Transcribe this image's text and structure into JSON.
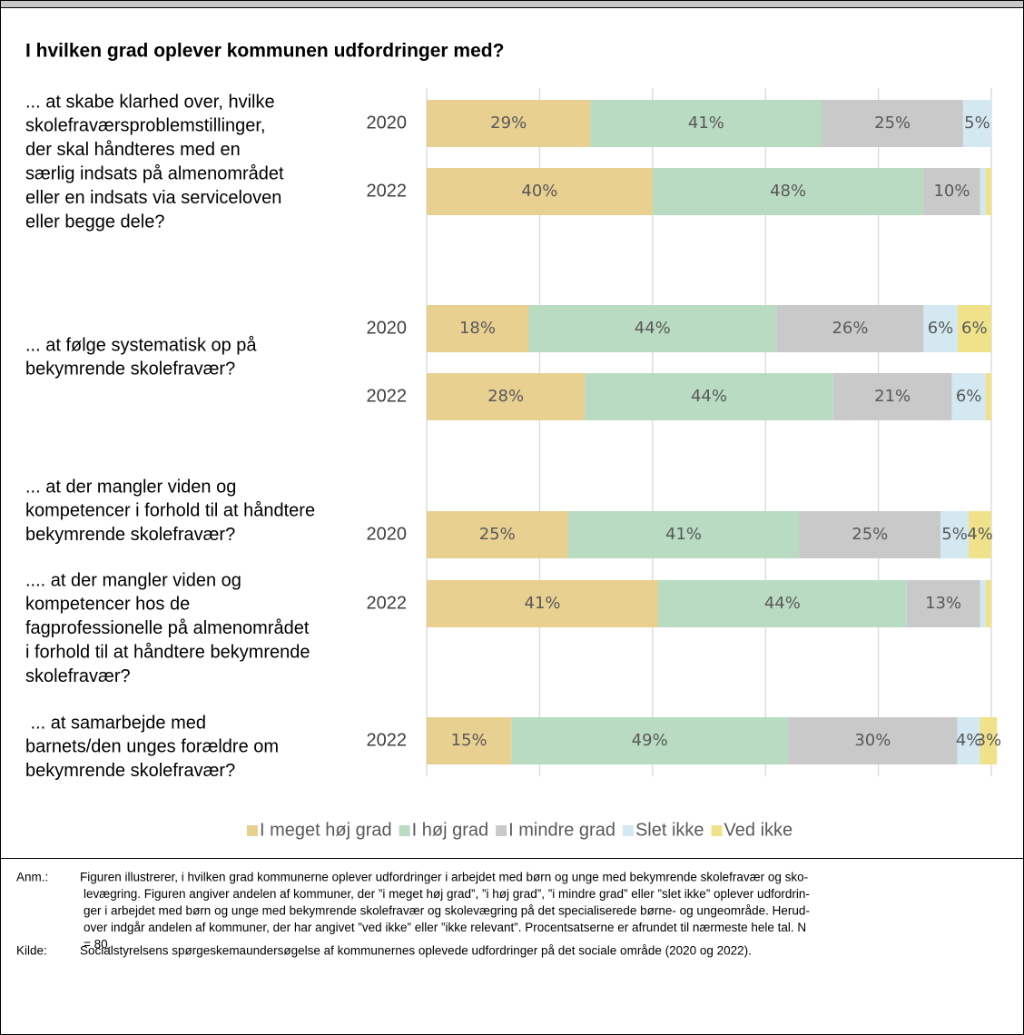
{
  "chart_data": {
    "type": "stacked_barh",
    "title": "I hvilken grad oplever kommunen udfordringer med?",
    "questions": [
      [
        "... at skabe klarhed over, hvilke",
        "skolefraværsproblemstillinger,",
        "der skal håndteres med en",
        "særlig indsats på almenområdet",
        "eller en indsats via serviceloven",
        "eller begge dele?"
      ],
      [
        "... at følge systematisk op på",
        "bekymrende skolefravær?"
      ],
      [
        "... at der mangler viden og",
        "kompetencer i forhold til at håndtere",
        "bekymrende skolefravær?"
      ],
      [
        ".... at der mangler viden og",
        "kompetencer hos de",
        "fagprofessionelle på almenområdet",
        "i forhold til at håndtere bekymrende",
        "skolefravær?"
      ],
      [
        " ... at samarbejde med",
        "barnets/den unges forældre om",
        "bekymrende skolefravær?"
      ]
    ],
    "categories": [
      "2020",
      "2022",
      "2020",
      "2022",
      "2020",
      "2022",
      "2022"
    ],
    "series": [
      {
        "name": "I meget høj grad",
        "color": "#e8d091",
        "values": [
          29,
          40,
          18,
          28,
          25,
          41,
          15
        ],
        "value_labels": [
          "29%",
          "40%",
          "18%",
          "28%",
          "25%",
          "41%",
          "15%"
        ]
      },
      {
        "name": "I høj grad",
        "color": "#b9dbc2",
        "values": [
          41,
          48,
          44,
          44,
          41,
          44,
          49
        ],
        "value_labels": [
          "41%",
          "48%",
          "44%",
          "44%",
          "41%",
          "44%",
          "49%"
        ]
      },
      {
        "name": "I mindre grad",
        "color": "#c9c9c9",
        "values": [
          25,
          10,
          26,
          21,
          25,
          13,
          30
        ],
        "value_labels": [
          "25%",
          "10%",
          "26%",
          "21%",
          "25%",
          "13%",
          "30%"
        ]
      },
      {
        "name": "Slet ikke",
        "color": "#d3e8f1",
        "values": [
          5,
          1,
          6,
          6,
          5,
          1,
          4
        ],
        "value_labels": [
          "5%",
          null,
          "6%",
          "6%",
          "5%",
          null,
          "4%"
        ]
      },
      {
        "name": "Ved ikke",
        "color": "#efe28b",
        "values": [
          0,
          1,
          6,
          1,
          4,
          1,
          3
        ],
        "value_labels": [
          null,
          null,
          "6%",
          null,
          "4%",
          null,
          "3%"
        ]
      }
    ],
    "xlim": [
      0,
      100
    ],
    "xticks": [
      0,
      20,
      40,
      60,
      80,
      100
    ],
    "grid": true,
    "legend": "bottom"
  },
  "notes": [
    {
      "label": "Anm.:",
      "lines": [
        "Figuren illustrerer, i hvilken grad kommunerne oplever udfordringer i arbejdet med børn og unge med bekymrende skolefravær og sko-",
        "levægring. Figuren angiver andelen af kommuner, der ”i meget høj grad”, ”i høj grad”, ”i mindre grad” eller ”slet ikke” oplever udfordrin-",
        "ger i arbejdet med børn og unge med bekymrende skolefravær og skolevægring på det specialiserede børne- og ungeområde. Herud-",
        "over indgår andelen af kommuner, der har angivet ”ved ikke” eller ”ikke relevant”. Procentsatserne er afrundet til nærmeste hele tal. N",
        "= 80."
      ]
    },
    {
      "label": "Kilde:",
      "lines": [
        "Socialstyrelsens spørgeskemaundersøgelse af kommunernes oplevede udfordringer på det sociale område (2020 og 2022)."
      ]
    }
  ]
}
